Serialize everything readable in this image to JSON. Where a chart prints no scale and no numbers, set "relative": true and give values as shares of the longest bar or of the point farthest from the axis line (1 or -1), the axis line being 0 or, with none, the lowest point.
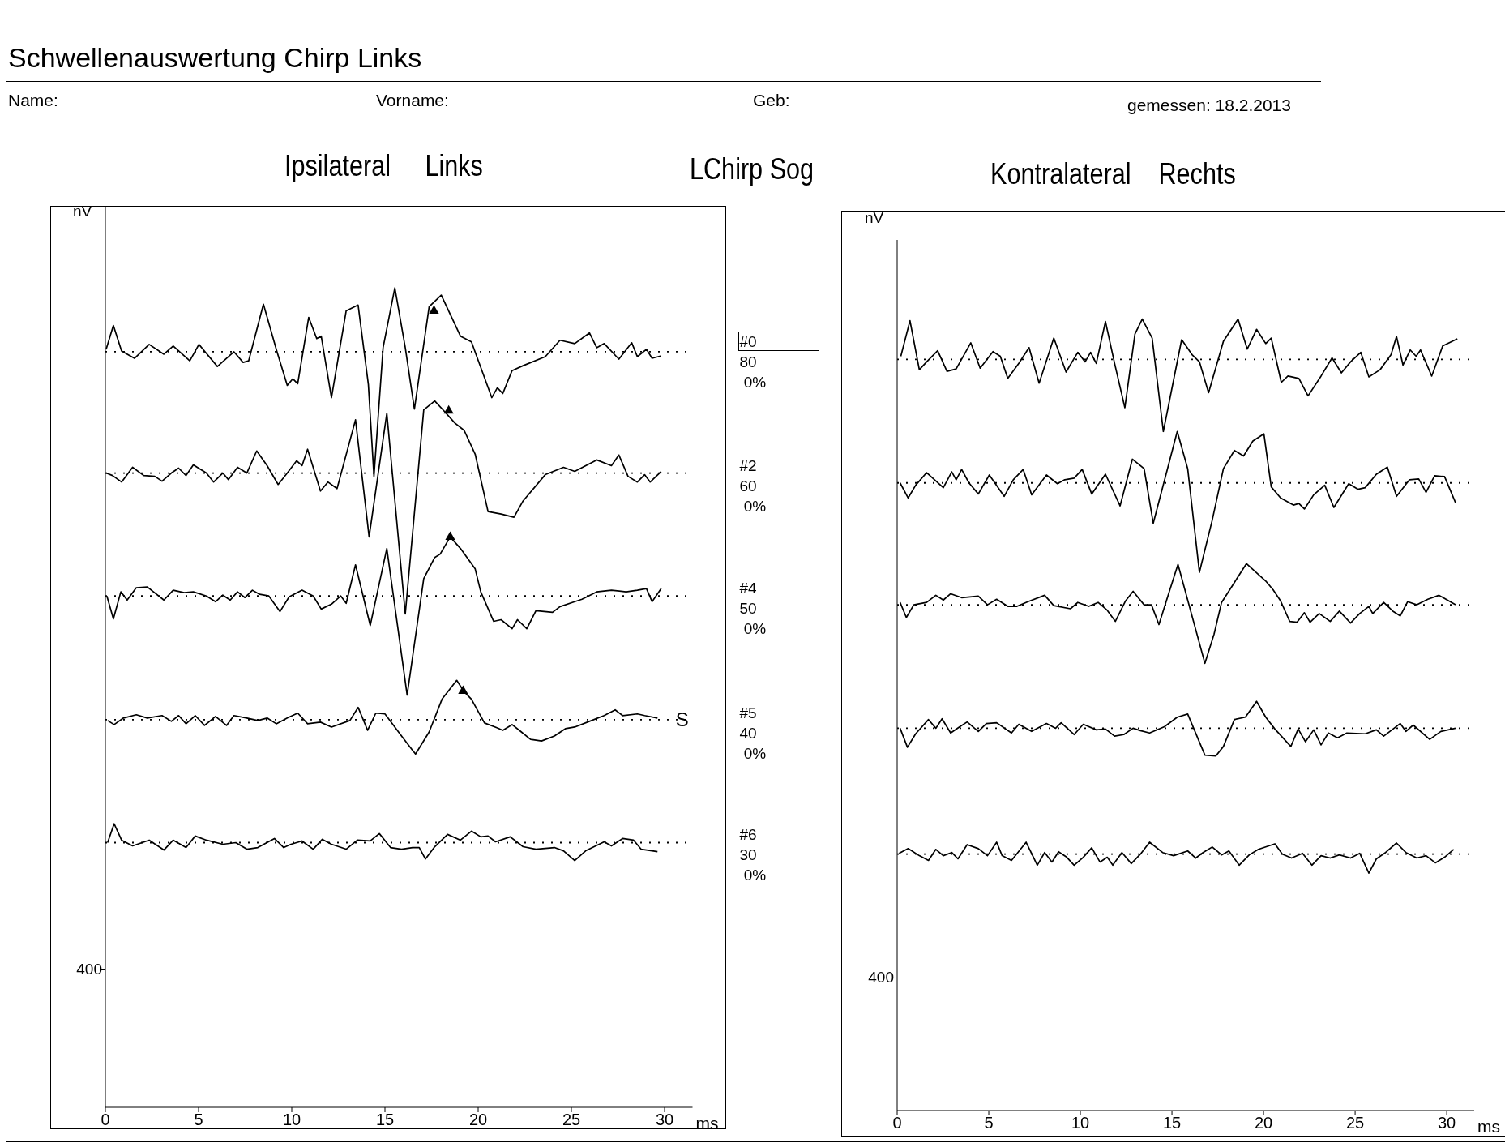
{
  "chart_data": [
    {
      "type": "line",
      "title": "Schwellenauswertung Chirp Links",
      "subtitle": "Ipsilateral     Links",
      "xlabel": "ms",
      "ylabel": "nV",
      "relative": true,
      "xlim": [
        0,
        31.5
      ],
      "xticks": [
        0,
        5,
        10,
        15,
        20,
        25,
        30
      ],
      "annotations": [
        "Name:",
        "Vorname:",
        "Geb:",
        "gemessen: 18.2.2013",
        "LChirp Sog",
        "400",
        {
          "text": "S",
          "x": 30.6,
          "y": 0.473
        }
      ],
      "ref_lines": [
        {
          "axis": "y",
          "value": 0.922,
          "line_style": "dotted"
        },
        {
          "axis": "y",
          "value": 0.774,
          "line_style": "dotted"
        },
        {
          "axis": "y",
          "value": 0.624,
          "line_style": "dotted"
        },
        {
          "axis": "y",
          "value": 0.473,
          "line_style": "dotted"
        },
        {
          "axis": "y",
          "value": 0.323,
          "line_style": "dotted"
        }
      ],
      "series": [
        {
          "name": "#0\n80\n 0%",
          "color": "#000000",
          "x": [
            0.04,
            0.43,
            0.87,
            1.56,
            2.35,
            3.14,
            3.64,
            4.53,
            5.02,
            6.01,
            6.9,
            7.39,
            7.69,
            8.48,
            9.17,
            9.76,
            10.06,
            10.32,
            10.91,
            11.34,
            11.58,
            12.13,
            12.92,
            13.56,
            14.11,
            14.41,
            14.9,
            15.53,
            16.09,
            16.58,
            17.37,
            18.02,
            19.05,
            19.64,
            20.73,
            21.03,
            21.32,
            21.82,
            22.41,
            23.6,
            24.39,
            25.18,
            25.97,
            26.36,
            26.76,
            27.55,
            28.24,
            28.54,
            29.03,
            29.33,
            29.82
          ],
          "values": [
            0.925,
            0.954,
            0.923,
            0.914,
            0.931,
            0.919,
            0.929,
            0.911,
            0.931,
            0.904,
            0.922,
            0.909,
            0.911,
            0.98,
            0.925,
            0.881,
            0.889,
            0.883,
            0.964,
            0.938,
            0.941,
            0.866,
            0.972,
            0.979,
            0.882,
            0.77,
            0.927,
            1,
            0.927,
            0.852,
            0.977,
            0.991,
            0.941,
            0.934,
            0.866,
            0.878,
            0.871,
            0.899,
            0.905,
            0.916,
            0.936,
            0.932,
            0.945,
            0.927,
            0.932,
            0.913,
            0.933,
            0.916,
            0.925,
            0.914,
            0.917
          ]
        },
        {
          "name": "#2\n60\n 0%",
          "color": "#000000",
          "x": [
            0.04,
            0.38,
            0.87,
            1.46,
            2.06,
            2.65,
            3.04,
            3.54,
            3.93,
            4.33,
            4.72,
            5.42,
            5.81,
            6.3,
            6.6,
            7.09,
            7.59,
            8.12,
            8.68,
            9.27,
            9.76,
            10.26,
            10.55,
            10.85,
            11.54,
            11.94,
            12.43,
            13.42,
            14.15,
            15.1,
            16.09,
            17.08,
            17.67,
            18.16,
            18.75,
            19.25,
            19.84,
            20.53,
            21.23,
            21.92,
            22.41,
            23.6,
            24.58,
            25.18,
            26.36,
            27.15,
            27.55,
            28.04,
            28.54,
            28.93,
            29.23,
            29.82
          ],
          "values": [
            0.774,
            0.771,
            0.763,
            0.781,
            0.771,
            0.77,
            0.764,
            0.774,
            0.78,
            0.771,
            0.784,
            0.774,
            0.763,
            0.774,
            0.766,
            0.781,
            0.774,
            0.801,
            0.783,
            0.76,
            0.774,
            0.789,
            0.783,
            0.803,
            0.752,
            0.763,
            0.755,
            0.839,
            0.696,
            0.847,
            0.602,
            0.851,
            0.862,
            0.85,
            0.835,
            0.826,
            0.797,
            0.727,
            0.724,
            0.72,
            0.74,
            0.772,
            0.781,
            0.776,
            0.79,
            0.783,
            0.796,
            0.77,
            0.763,
            0.772,
            0.763,
            0.776
          ]
        },
        {
          "name": "#4\n50\n 0%",
          "color": "#000000",
          "x": [
            0.08,
            0.43,
            0.83,
            1.17,
            1.66,
            2.25,
            3.14,
            3.64,
            4.23,
            4.72,
            5.42,
            5.91,
            6.3,
            6.7,
            7.09,
            7.49,
            7.89,
            8.28,
            8.77,
            9.37,
            9.86,
            10.55,
            11.15,
            11.58,
            12.13,
            12.63,
            12.92,
            13.42,
            14.21,
            15.1,
            16.19,
            17.08,
            17.67,
            17.96,
            18.5,
            19.05,
            19.84,
            20.14,
            20.83,
            21.23,
            21.82,
            22.11,
            22.61,
            23.1,
            23.99,
            24.39,
            25.18,
            25.57,
            26.36,
            27.15,
            27.94,
            28.54,
            29.03,
            29.33,
            29.82
          ],
          "values": [
            0.624,
            0.596,
            0.629,
            0.619,
            0.634,
            0.635,
            0.619,
            0.631,
            0.628,
            0.629,
            0.624,
            0.617,
            0.625,
            0.619,
            0.629,
            0.622,
            0.631,
            0.626,
            0.624,
            0.605,
            0.623,
            0.631,
            0.624,
            0.608,
            0.614,
            0.624,
            0.615,
            0.662,
            0.588,
            0.682,
            0.503,
            0.645,
            0.671,
            0.675,
            0.696,
            0.682,
            0.657,
            0.629,
            0.593,
            0.595,
            0.584,
            0.595,
            0.584,
            0.606,
            0.604,
            0.611,
            0.617,
            0.62,
            0.629,
            0.631,
            0.629,
            0.631,
            0.633,
            0.617,
            0.633
          ]
        },
        {
          "name": "#5\n40\n 0%",
          "color": "#000000",
          "x": [
            0.12,
            0.47,
            0.97,
            1.66,
            2.25,
            3.04,
            3.54,
            3.93,
            4.33,
            4.82,
            5.32,
            5.91,
            6.5,
            6.9,
            7.59,
            8.18,
            8.68,
            9.17,
            9.76,
            10.32,
            10.85,
            11.54,
            12.13,
            13.12,
            13.56,
            14.07,
            14.51,
            15,
            15.89,
            16.64,
            17.37,
            18.06,
            18.85,
            19.25,
            19.64,
            20.34,
            21.03,
            21.32,
            21.82,
            22.21,
            22.81,
            23.4,
            24.09,
            24.68,
            25.18,
            25.97,
            26.76,
            27.35,
            27.75,
            28.54,
            28.93,
            29.62
          ],
          "values": [
            0.472,
            0.467,
            0.475,
            0.479,
            0.475,
            0.478,
            0.471,
            0.478,
            0.468,
            0.478,
            0.466,
            0.477,
            0.466,
            0.478,
            0.475,
            0.472,
            0.475,
            0.468,
            0.475,
            0.481,
            0.468,
            0.47,
            0.464,
            0.472,
            0.488,
            0.46,
            0.481,
            0.48,
            0.453,
            0.431,
            0.458,
            0.498,
            0.521,
            0.507,
            0.498,
            0.469,
            0.463,
            0.46,
            0.467,
            0.46,
            0.449,
            0.447,
            0.453,
            0.462,
            0.464,
            0.471,
            0.478,
            0.485,
            0.478,
            0.48,
            0.478,
            0.475
          ]
        },
        {
          "name": "#6\n30\n 0%",
          "color": "#000000",
          "x": [
            0.12,
            0.47,
            0.87,
            1.46,
            2.35,
            3.14,
            3.64,
            4.33,
            4.82,
            5.42,
            6.3,
            7,
            7.59,
            8.18,
            9.07,
            9.57,
            9.96,
            10.55,
            11.15,
            11.64,
            12.13,
            12.92,
            13.52,
            14.21,
            14.7,
            15.3,
            15.89,
            16.48,
            16.84,
            17.17,
            17.67,
            18.36,
            19.05,
            19.64,
            20.14,
            20.53,
            20.93,
            21.72,
            22.41,
            23.1,
            24.09,
            24.58,
            25.18,
            25.77,
            26.76,
            27.15,
            27.75,
            28.34,
            28.74,
            29.62
          ],
          "values": [
            0.323,
            0.346,
            0.326,
            0.319,
            0.326,
            0.314,
            0.326,
            0.317,
            0.331,
            0.326,
            0.321,
            0.323,
            0.315,
            0.317,
            0.328,
            0.317,
            0.321,
            0.325,
            0.315,
            0.327,
            0.321,
            0.315,
            0.326,
            0.325,
            0.334,
            0.317,
            0.315,
            0.317,
            0.317,
            0.303,
            0.318,
            0.333,
            0.326,
            0.337,
            0.33,
            0.331,
            0.324,
            0.33,
            0.318,
            0.315,
            0.317,
            0.313,
            0.301,
            0.313,
            0.324,
            0.319,
            0.328,
            0.326,
            0.315,
            0.312
          ]
        },
        {
          "type": "scatter",
          "marker": "triangle",
          "color": "#000000",
          "x": [
            17.63,
            18.42,
            18.5,
            19.19
          ],
          "values": [
            0.972,
            0.85,
            0.696,
            0.508
          ]
        }
      ]
    },
    {
      "type": "line",
      "title": "Kontralateral    Rechts",
      "xlabel": "ms",
      "ylabel": "nV",
      "relative": true,
      "xlim": [
        0,
        31.5
      ],
      "xticks": [
        0,
        5,
        10,
        15,
        20,
        25,
        30
      ],
      "annotations": [
        "400"
      ],
      "ref_lines": [
        {
          "axis": "y",
          "value": 0.949,
          "line_style": "dotted"
        },
        {
          "axis": "y",
          "value": 0.793,
          "line_style": "dotted"
        },
        {
          "axis": "y",
          "value": 0.639,
          "line_style": "dotted"
        },
        {
          "axis": "y",
          "value": 0.483,
          "line_style": "dotted"
        },
        {
          "axis": "y",
          "value": 0.324,
          "line_style": "dotted"
        }
      ],
      "series": [
        {
          "color": "#000000",
          "x": [
            0.2,
            0.7,
            1.21,
            1.61,
            2.21,
            2.72,
            3.22,
            4.02,
            4.53,
            5.23,
            5.63,
            6.04,
            6.64,
            7.2,
            7.75,
            8.55,
            9.22,
            9.86,
            10.26,
            10.56,
            10.87,
            11.37,
            11.87,
            12.43,
            12.98,
            13.38,
            13.92,
            14.53,
            15.53,
            16.1,
            16.5,
            17,
            17.81,
            18.61,
            19.11,
            19.62,
            20.12,
            20.42,
            20.97,
            21.33,
            21.93,
            22.43,
            23.14,
            23.74,
            24.25,
            24.75,
            25.31,
            25.75,
            26.36,
            26.96,
            27.26,
            27.61,
            28.01,
            28.33,
            28.57,
            29.18,
            29.78,
            30.58
          ],
          "values": [
            0.953,
            0.998,
            0.936,
            0.946,
            0.96,
            0.934,
            0.937,
            0.97,
            0.938,
            0.959,
            0.953,
            0.925,
            0.944,
            0.964,
            0.919,
            0.976,
            0.933,
            0.958,
            0.946,
            0.958,
            0.944,
            0.997,
            0.944,
            0.888,
            0.981,
            1,
            0.976,
            0.858,
            0.974,
            0.955,
            0.946,
            0.907,
            0.972,
            1,
            0.962,
            0.987,
            0.969,
            0.976,
            0.92,
            0.928,
            0.925,
            0.903,
            0.928,
            0.951,
            0.932,
            0.946,
            0.958,
            0.927,
            0.936,
            0.955,
            0.978,
            0.942,
            0.961,
            0.953,
            0.961,
            0.928,
            0.966,
            0.975
          ]
        },
        {
          "color": "#000000",
          "x": [
            0.16,
            0.6,
            1.01,
            1.61,
            2.52,
            2.98,
            3.22,
            3.52,
            3.92,
            4.43,
            5.03,
            5.84,
            6.34,
            6.88,
            7.34,
            8.15,
            8.75,
            9.15,
            9.66,
            10.1,
            10.62,
            11.37,
            12.17,
            12.84,
            13.48,
            13.98,
            15.29,
            15.86,
            16.5,
            17.2,
            17.81,
            18.41,
            18.91,
            19.42,
            20.02,
            20.42,
            20.93,
            21.63,
            21.93,
            22.23,
            22.74,
            23.34,
            23.84,
            24.65,
            25.15,
            25.55,
            26.16,
            26.76,
            27.26,
            27.97,
            28.47,
            28.87,
            29.34,
            29.88,
            30.48
          ],
          "values": [
            0.793,
            0.774,
            0.79,
            0.806,
            0.787,
            0.807,
            0.797,
            0.81,
            0.793,
            0.779,
            0.803,
            0.776,
            0.797,
            0.81,
            0.778,
            0.803,
            0.792,
            0.797,
            0.799,
            0.81,
            0.779,
            0.804,
            0.764,
            0.823,
            0.811,
            0.742,
            0.858,
            0.811,
            0.68,
            0.746,
            0.811,
            0.834,
            0.827,
            0.846,
            0.855,
            0.788,
            0.774,
            0.765,
            0.767,
            0.76,
            0.778,
            0.79,
            0.762,
            0.792,
            0.785,
            0.787,
            0.804,
            0.813,
            0.776,
            0.797,
            0.798,
            0.781,
            0.802,
            0.801,
            0.768
          ]
        },
        {
          "color": "#000000",
          "x": [
            0.16,
            0.5,
            0.91,
            1.61,
            2.11,
            2.52,
            2.92,
            3.52,
            4.43,
            4.93,
            5.43,
            6.04,
            6.54,
            7.14,
            8.05,
            8.55,
            9.46,
            9.86,
            10.46,
            10.97,
            11.47,
            11.91,
            12.47,
            12.88,
            13.48,
            13.88,
            14.29,
            14.79,
            15.33,
            16.8,
            17.3,
            17.71,
            19.07,
            20.12,
            20.52,
            20.93,
            21.43,
            21.83,
            22.23,
            22.54,
            23.04,
            23.64,
            24.14,
            24.75,
            25.25,
            25.75,
            25.96,
            26.56,
            27.06,
            27.46,
            27.87,
            28.37,
            28.97,
            29.58,
            30.48
          ],
          "values": [
            0.642,
            0.623,
            0.639,
            0.642,
            0.651,
            0.645,
            0.653,
            0.648,
            0.65,
            0.639,
            0.646,
            0.637,
            0.637,
            0.643,
            0.651,
            0.638,
            0.634,
            0.642,
            0.637,
            0.642,
            0.632,
            0.618,
            0.644,
            0.656,
            0.639,
            0.639,
            0.614,
            0.651,
            0.69,
            0.565,
            0.602,
            0.642,
            0.691,
            0.669,
            0.658,
            0.644,
            0.618,
            0.617,
            0.629,
            0.617,
            0.628,
            0.618,
            0.631,
            0.616,
            0.628,
            0.637,
            0.628,
            0.642,
            0.631,
            0.625,
            0.643,
            0.639,
            0.646,
            0.651,
            0.639
          ]
        },
        {
          "color": "#000000",
          "x": [
            0.16,
            0.56,
            1.01,
            1.71,
            2.11,
            2.45,
            2.92,
            3.42,
            3.82,
            4.43,
            4.87,
            5.43,
            6.24,
            6.64,
            7.34,
            8.15,
            8.65,
            8.95,
            9.66,
            10.16,
            10.87,
            11.37,
            11.87,
            12.37,
            12.88,
            13.28,
            13.78,
            14.59,
            15.29,
            15.86,
            16.8,
            17.4,
            17.81,
            18.41,
            19.01,
            19.62,
            20.12,
            20.62,
            21.49,
            21.89,
            22.29,
            22.74,
            23.14,
            23.54,
            24.04,
            24.55,
            25.55,
            26.16,
            26.56,
            27.46,
            27.77,
            28.17,
            29.07,
            29.68,
            30.48
          ],
          "values": [
            0.483,
            0.459,
            0.476,
            0.494,
            0.483,
            0.495,
            0.477,
            0.485,
            0.491,
            0.479,
            0.489,
            0.49,
            0.477,
            0.488,
            0.479,
            0.489,
            0.483,
            0.49,
            0.475,
            0.488,
            0.481,
            0.482,
            0.473,
            0.475,
            0.483,
            0.48,
            0.477,
            0.485,
            0.497,
            0.501,
            0.449,
            0.448,
            0.46,
            0.494,
            0.497,
            0.517,
            0.497,
            0.482,
            0.46,
            0.482,
            0.466,
            0.481,
            0.462,
            0.477,
            0.471,
            0.477,
            0.476,
            0.481,
            0.473,
            0.489,
            0.479,
            0.487,
            0.469,
            0.479,
            0.483
          ]
        },
        {
          "color": "#000000",
          "x": [
            0.1,
            0.6,
            1.21,
            1.71,
            2.11,
            2.52,
            2.98,
            3.32,
            3.82,
            4.43,
            4.93,
            5.43,
            5.73,
            6.24,
            7.04,
            7.65,
            8.05,
            8.45,
            8.81,
            9.26,
            9.66,
            10.16,
            10.62,
            11.07,
            11.47,
            11.77,
            12.27,
            12.78,
            13.28,
            13.78,
            14.49,
            15.09,
            15.86,
            16.3,
            16.7,
            17.2,
            17.71,
            18.11,
            18.67,
            19.22,
            19.72,
            20.62,
            21.03,
            21.53,
            22.13,
            22.64,
            23.14,
            23.64,
            24.14,
            24.75,
            25.25,
            25.75,
            26.16,
            26.66,
            27.26,
            27.77,
            28.37,
            28.87,
            29.38,
            29.88,
            30.38
          ],
          "values": [
            0.325,
            0.331,
            0.322,
            0.316,
            0.33,
            0.322,
            0.326,
            0.318,
            0.336,
            0.331,
            0.322,
            0.339,
            0.322,
            0.316,
            0.339,
            0.31,
            0.326,
            0.314,
            0.327,
            0.32,
            0.31,
            0.32,
            0.332,
            0.314,
            0.32,
            0.31,
            0.326,
            0.312,
            0.324,
            0.339,
            0.326,
            0.322,
            0.328,
            0.319,
            0.326,
            0.333,
            0.323,
            0.328,
            0.31,
            0.323,
            0.33,
            0.337,
            0.324,
            0.319,
            0.325,
            0.31,
            0.322,
            0.319,
            0.323,
            0.319,
            0.325,
            0.3,
            0.318,
            0.326,
            0.338,
            0.326,
            0.319,
            0.322,
            0.313,
            0.32,
            0.33
          ]
        }
      ]
    }
  ]
}
